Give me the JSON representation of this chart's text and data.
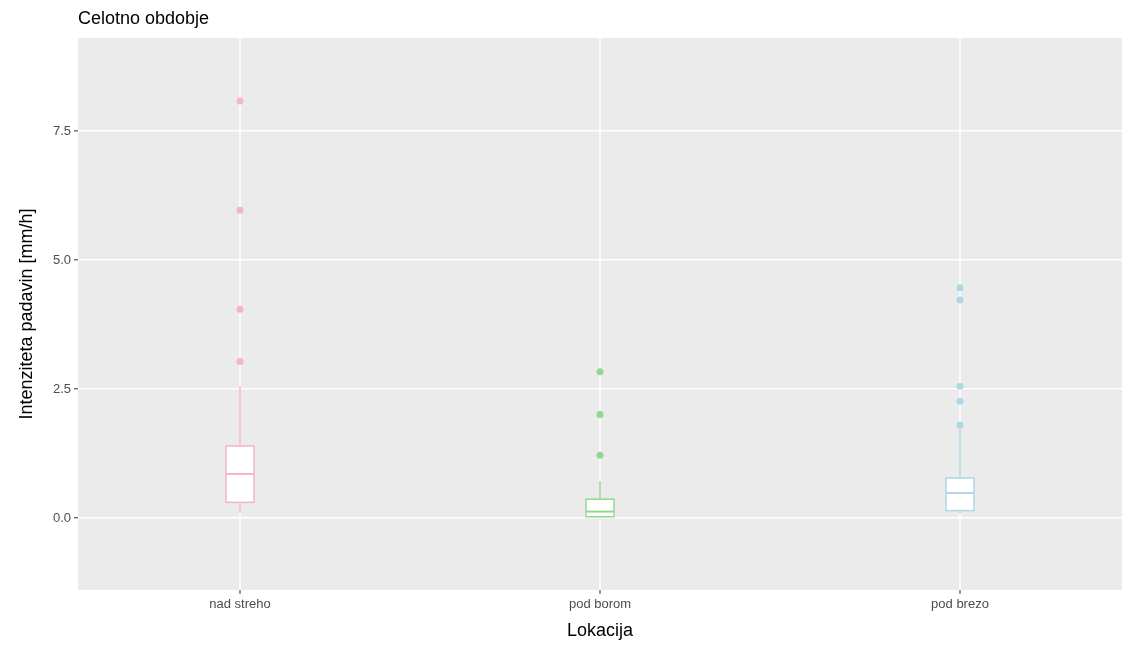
{
  "chart_data": {
    "type": "box",
    "title": "Celotno obdobje",
    "xlabel": "Lokacija",
    "ylabel": "Intenziteta padavin [mm/h]",
    "categories": [
      "nad streho",
      "pod borom",
      "pod brezo"
    ],
    "colors": [
      "#f4b6c2",
      "#90d890",
      "#add8e6"
    ],
    "boxes": [
      {
        "low": 0.1,
        "q1": 0.3,
        "median": 0.85,
        "q3": 1.39,
        "high": 2.55,
        "outliers": [
          3.03,
          4.04,
          5.96,
          8.08
        ]
      },
      {
        "low": 0.0,
        "q1": 0.02,
        "median": 0.12,
        "q3": 0.36,
        "high": 0.71,
        "outliers": [
          1.21,
          2.0,
          2.83
        ]
      },
      {
        "low": 0.08,
        "q1": 0.14,
        "median": 0.48,
        "q3": 0.77,
        "high": 1.75,
        "outliers": [
          1.8,
          2.26,
          2.55,
          4.22,
          4.46
        ]
      }
    ],
    "ylim": [
      -1.4,
      9.3
    ],
    "yticks": [
      {
        "value": 0,
        "label": "0.0"
      },
      {
        "value": 2.5,
        "label": "2.5"
      },
      {
        "value": 5,
        "label": "5.0"
      },
      {
        "value": 7.5,
        "label": "7.5"
      }
    ],
    "grid": true
  }
}
